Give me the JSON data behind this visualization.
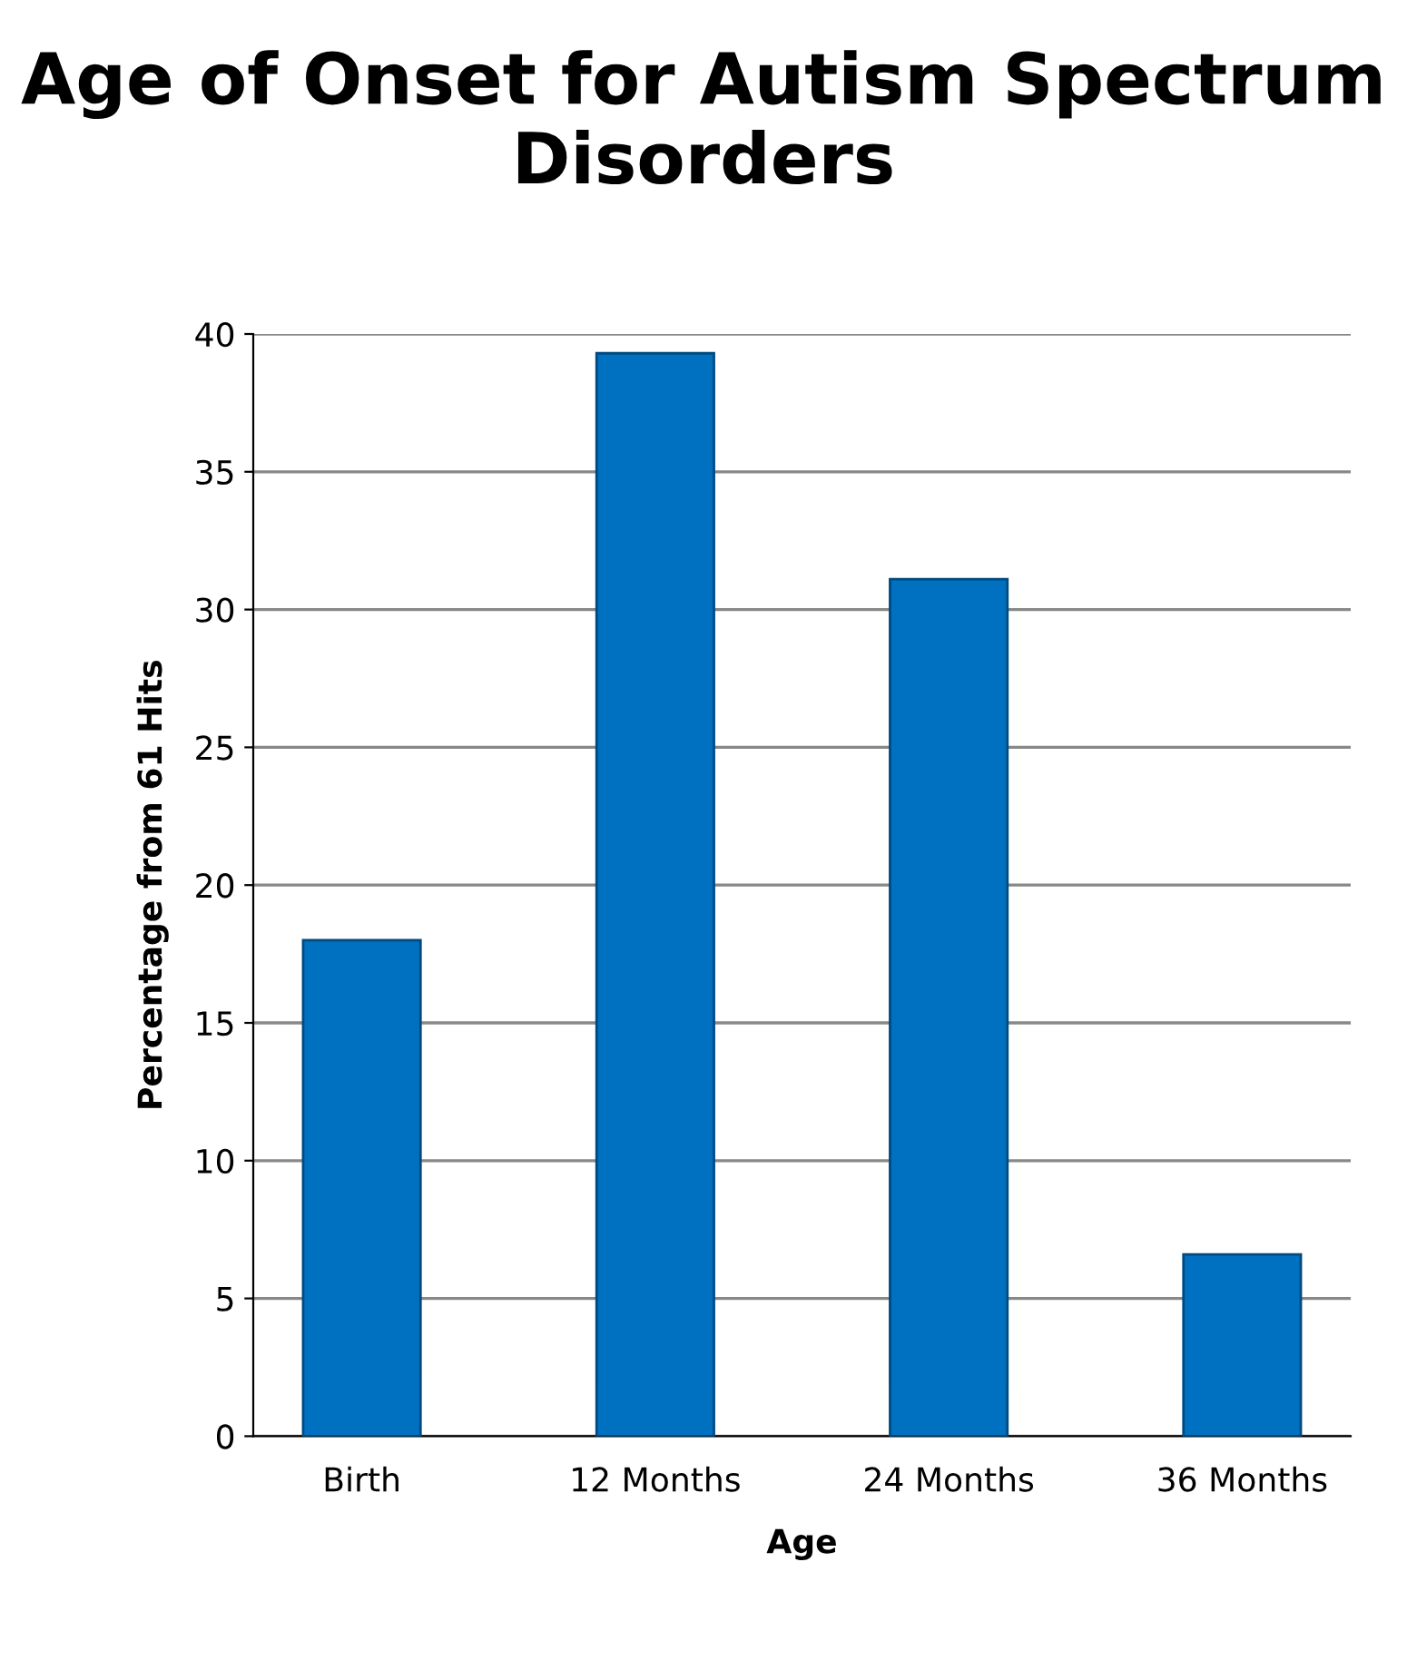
{
  "chart_data": {
    "type": "bar",
    "title": "Age of Onset for Autism Spectrum Disorders",
    "xlabel": "Age",
    "ylabel": "Percentage from 61 Hits",
    "categories": [
      "Birth",
      "12 Months",
      "24 Months",
      "36 Months"
    ],
    "values": [
      18,
      39.3,
      31.1,
      6.6
    ],
    "color": "#0070c0",
    "ylim": [
      0,
      40
    ],
    "yticks": [
      0,
      5,
      10,
      15,
      20,
      25,
      30,
      35,
      40
    ],
    "grid": "y",
    "legend": false
  }
}
